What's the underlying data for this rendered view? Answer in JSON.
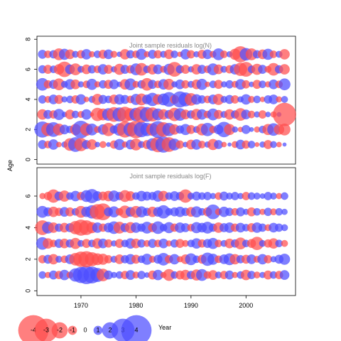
{
  "chart_data": {
    "type": "scatter",
    "xlabel": "Year",
    "ylabel": "Age",
    "xticks": [
      "1970",
      "1980",
      "1990",
      "2000"
    ],
    "xlim": [
      1962,
      2009
    ],
    "colors": {
      "positive": "#4d4dff",
      "negative": "#ff4d4d"
    },
    "legend": {
      "placement": "bottom-left",
      "values": [
        -4,
        -3,
        -2,
        -1,
        0,
        1,
        2,
        3,
        4
      ],
      "labels": [
        "-4",
        "-3",
        "-2",
        "-1",
        "0",
        "1",
        "2",
        "3",
        "4"
      ]
    },
    "panels": [
      {
        "title": "Joint sample residuals log(N)",
        "ylim": [
          -0.3,
          8.2
        ],
        "yticks": [
          "0",
          "2",
          "4",
          "6",
          "8"
        ],
        "ages": [
          1,
          2,
          3,
          4,
          5,
          6,
          7
        ],
        "years": [
          1963,
          1964,
          1965,
          1966,
          1967,
          1968,
          1969,
          1970,
          1971,
          1972,
          1973,
          1974,
          1975,
          1976,
          1977,
          1978,
          1979,
          1980,
          1981,
          1982,
          1983,
          1984,
          1985,
          1986,
          1987,
          1988,
          1989,
          1990,
          1991,
          1992,
          1993,
          1994,
          1995,
          1996,
          1997,
          1998,
          1999,
          2000,
          2001,
          2002,
          2003,
          2004,
          2005,
          2006,
          2007
        ],
        "residuals": {
          "1": [
            1.0,
            -0.8,
            1.2,
            -0.5,
            0.6,
            -1.5,
            1.8,
            -1.6,
            1.0,
            -1.2,
            0.5,
            -0.7,
            0.4,
            -0.9,
            1.3,
            -0.6,
            1.1,
            -1.4,
            0.7,
            -1.0,
            1.5,
            -1.9,
            2.0,
            -1.8,
            1.4,
            -0.9,
            0.5,
            -1.1,
            1.2,
            -0.8,
            0.6,
            -1.3,
            1.0,
            -0.5,
            0.3,
            -0.7,
            1.1,
            -0.9,
            0.8,
            -0.4,
            0.6,
            -1.0,
            0.7,
            -0.5,
            0.3
          ],
          "2": [
            2.0,
            -1.6,
            1.8,
            -1.4,
            1.1,
            0.8,
            -1.3,
            2.2,
            -1.5,
            1.4,
            -0.7,
            1.2,
            -1.6,
            0.9,
            1.5,
            -2.0,
            1.7,
            -2.2,
            1.9,
            1.6,
            -1.5,
            2.1,
            -1.8,
            1.6,
            -1.2,
            0.9,
            1.3,
            -1.0,
            0.7,
            -1.4,
            1.6,
            -0.8,
            1.1,
            1.9,
            -1.3,
            0.6,
            -0.5,
            1.0,
            0.4,
            -0.6,
            0.8,
            -1.3,
            1.5,
            -1.2,
            -1.4
          ],
          "3": [
            -1.2,
            1.0,
            -0.9,
            1.3,
            0.5,
            -1.1,
            0.8,
            -0.7,
            1.2,
            -0.3,
            -1.6,
            -1.4,
            1.5,
            -1.8,
            1.7,
            -1.9,
            -1.5,
            1.6,
            -2.0,
            1.8,
            -1.7,
            1.4,
            -1.2,
            1.0,
            -1.6,
            1.5,
            -1.1,
            0.9,
            -1.3,
            1.2,
            -0.8,
            1.4,
            -1.0,
            0.7,
            -1.2,
            0.9,
            -1.5,
            1.1,
            -0.8,
            0.6,
            -0.9,
            0.5,
            -0.6,
            0.4,
            -3.0
          ],
          "4": [
            0.9,
            -0.7,
            1.1,
            -1.0,
            0.6,
            0.8,
            -0.9,
            1.2,
            -0.5,
            0.7,
            -1.3,
            1.0,
            0.8,
            -1.1,
            1.2,
            1.0,
            -0.8,
            1.3,
            -1.4,
            1.1,
            1.6,
            -1.2,
            1.4,
            1.8,
            -1.0,
            2.0,
            1.7,
            -1.5,
            1.2,
            0.9,
            -0.8,
            1.1,
            -1.3,
            0.7,
            1.0,
            -0.9,
            0.6,
            1.2,
            -0.7,
            0.8,
            -0.5,
            0.9,
            1.1,
            -0.6,
            0.7
          ],
          "5": [
            1.5,
            -0.9,
            1.0,
            -1.4,
            0.7,
            1.2,
            -1.1,
            0.6,
            -0.8,
            1.3,
            -0.6,
            0.9,
            -1.0,
            1.1,
            0.5,
            -1.2,
            1.4,
            -0.7,
            0.9,
            -1.5,
            1.0,
            -0.8,
            1.2,
            -1.3,
            0.6,
            1.1,
            -0.9,
            0.7,
            -1.1,
            1.3,
            -0.5,
            0.8,
            -1.0,
            0.6,
            0.9,
            -0.7,
            1.2,
            -0.9,
            0.5,
            -1.0,
            0.8,
            -0.6,
            1.1,
            -0.8,
            1.4
          ],
          "6": [
            0.9,
            -1.0,
            0.8,
            -1.2,
            -1.9,
            1.1,
            -1.4,
            0.7,
            -1.1,
            0.9,
            -0.8,
            1.2,
            -1.0,
            0.6,
            -1.3,
            1.0,
            -0.9,
            1.4,
            -1.5,
            0.8,
            -1.2,
            1.1,
            -0.7,
            1.3,
            -1.8,
            0.9,
            -1.0,
            0.6,
            -1.2,
            1.0,
            -0.8,
            1.4,
            -1.1,
            0.7,
            -0.9,
            1.2,
            -1.6,
            -1.8,
            0.8,
            -1.3,
            1.0,
            -0.7,
            -1.5,
            0.9,
            -1.2
          ],
          "7": [
            1.0,
            -0.8,
            0.9,
            -1.4,
            1.3,
            -1.1,
            0.7,
            -0.9,
            1.2,
            -0.6,
            0.8,
            -1.0,
            1.1,
            -0.7,
            0.5,
            -1.2,
            0.9,
            -0.8,
            1.3,
            -0.6,
            1.0,
            -0.9,
            0.7,
            -1.1,
            0.8,
            -0.5,
            1.2,
            -0.9,
            0.6,
            -1.0,
            1.1,
            -0.7,
            1.4,
            -0.8,
            0.6,
            -1.3,
            -2.0,
            1.5,
            -1.4,
            0.9,
            -1.1,
            1.3,
            -0.8,
            0.7,
            -1.2
          ]
        }
      },
      {
        "title": "Joint sample residuals log(F)",
        "ylim": [
          -0.3,
          7.8
        ],
        "yticks": [
          "0",
          "2",
          "4",
          "6"
        ],
        "ages": [
          1,
          2,
          3,
          4,
          5,
          6
        ],
        "years": [
          1963,
          1964,
          1965,
          1966,
          1967,
          1968,
          1969,
          1970,
          1971,
          1972,
          1973,
          1974,
          1975,
          1976,
          1977,
          1978,
          1979,
          1980,
          1981,
          1982,
          1983,
          1984,
          1985,
          1986,
          1987,
          1988,
          1989,
          1990,
          1991,
          1992,
          1993,
          1994,
          1995,
          1996,
          1997,
          1998,
          1999,
          2000,
          2001,
          2002,
          2003,
          2004,
          2005,
          2006,
          2007
        ],
        "residuals": {
          "1": [
            0.8,
            -0.6,
            1.0,
            -0.9,
            1.2,
            -0.7,
            1.6,
            2.0,
            2.3,
            2.1,
            1.7,
            -1.5,
            1.0,
            0.6,
            0.8,
            -0.9,
            1.1,
            -0.7,
            0.9,
            0.5,
            -1.0,
            1.2,
            -0.6,
            -1.4,
            0.8,
            -1.0,
            -1.2,
            0.9,
            -1.3,
            1.4,
            -0.8,
            -1.1,
            0.7,
            -0.9,
            1.0,
            -0.6,
            0.8,
            -1.2,
            0.9,
            -0.7,
            0.6,
            -1.0,
            0.8,
            -0.9,
            1.1
          ],
          "2": [
            -0.9,
            1.0,
            -1.2,
            0.7,
            -0.8,
            1.1,
            -1.5,
            -1.9,
            -2.0,
            -1.7,
            -1.4,
            -1.3,
            -0.9,
            0.7,
            -1.1,
            0.9,
            1.2,
            -1.0,
            0.8,
            1.3,
            -0.7,
            1.0,
            1.5,
            -0.9,
            1.2,
            -0.6,
            -1.1,
            1.4,
            0.8,
            -1.0,
            1.6,
            1.3,
            -0.8,
            1.1,
            1.4,
            -1.2,
            0.9,
            -1.0,
            1.1,
            -0.7,
            1.2,
            -0.9,
            0.6,
            1.0,
            1.3
          ],
          "3": [
            1.5,
            -1.2,
            -0.8,
            1.0,
            -1.1,
            0.9,
            -1.3,
            0.7,
            -1.0,
            0.8,
            -1.2,
            1.1,
            -0.9,
            0.6,
            -1.0,
            0.8,
            1.2,
            -1.1,
            0.9,
            -0.7,
            1.0,
            -0.8,
            1.1,
            -0.6,
            0.9,
            -1.0,
            -0.7,
            0.8,
            1.2,
            -0.9,
            1.0,
            1.3,
            -0.8,
            0.7,
            -1.1,
            0.9,
            -1.4,
            0.8,
            -1.0,
            -1.6,
            0.7,
            -0.9,
            -1.2,
            0.8,
            -0.7
          ],
          "4": [
            -1.8,
            1.4,
            -1.2,
            0.9,
            -1.1,
            1.0,
            -1.6,
            -2.0,
            -1.8,
            -1.3,
            1.2,
            -0.9,
            1.1,
            1.5,
            -1.4,
            1.0,
            -1.3,
            1.2,
            0.9,
            1.4,
            -1.0,
            1.5,
            0.8,
            1.3,
            -0.9,
            1.2,
            1.0,
            -0.8,
            1.3,
            1.1,
            1.4,
            0.9,
            -1.2,
            1.0,
            1.2,
            -0.9,
            1.1,
            0.8,
            -1.0,
            1.2,
            0.9,
            -0.7,
            1.1,
            0.9,
            0.7
          ],
          "5": [
            1.4,
            1.0,
            -1.2,
            -0.9,
            1.1,
            -1.0,
            0.8,
            -1.4,
            1.2,
            1.6,
            -1.9,
            -2.1,
            1.0,
            1.3,
            -0.8,
            -1.5,
            1.1,
            -1.4,
            1.3,
            0.9,
            -1.2,
            1.1,
            1.6,
            0.8,
            1.0,
            1.2,
            0.9,
            -1.1,
            1.3,
            0.8,
            -1.0,
            1.8,
            -0.7,
            1.2,
            0.9,
            -0.8,
            1.0,
            0.6,
            -1.0,
            0.8,
            -0.6,
            0.9,
            -0.7,
            0.8,
            0.6
          ],
          "6": [
            -0.6,
            -0.9,
            -1.6,
            1.0,
            -1.3,
            0.8,
            1.2,
            -0.9,
            1.4,
            1.7,
            1.1,
            -1.0,
            -1.2,
            1.3,
            0.9,
            -1.4,
            -1.1,
            0.8,
            1.2,
            1.0,
            0.9,
            1.3,
            -1.2,
            0.8,
            1.1,
            0.9,
            -1.6,
            0.7,
            1.0,
            0.8,
            0.9,
            0.6,
            -0.8,
            1.0,
            0.7,
            0.9,
            0.6,
            -0.9,
            0.8,
            0.7,
            0.5,
            0.9,
            0.7,
            -0.6,
            0.8
          ]
        }
      }
    ]
  }
}
